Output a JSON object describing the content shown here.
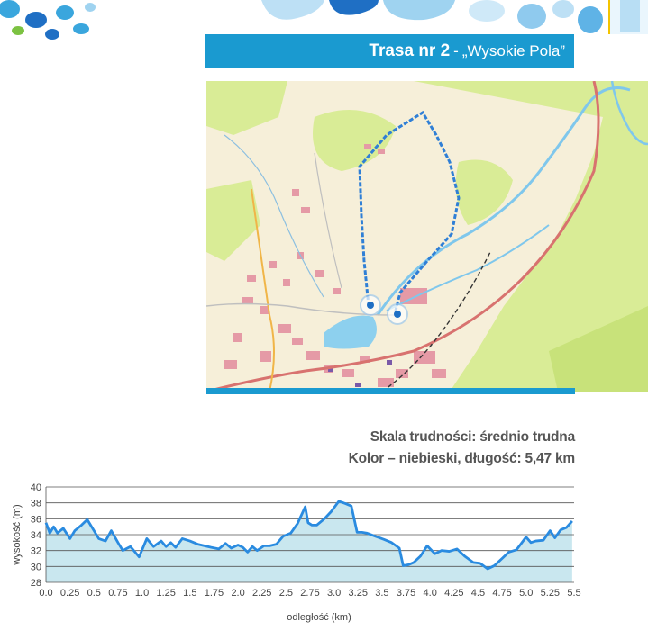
{
  "header": {
    "route_number": "Trasa nr 2",
    "separator": "-",
    "route_name": "„Wysokie Pola”",
    "colors": {
      "bar": "#1a9ad0",
      "text": "#ffffff"
    }
  },
  "map": {
    "icon": "map-image",
    "route_color": "#2f7fd6",
    "start_marker_color": "#1f6fc4"
  },
  "info": {
    "difficulty": "Skala trudności: średnio trudna",
    "color_length": "Kolor – niebieski, długość: 5,47 km"
  },
  "chart_data": {
    "type": "area",
    "xlabel": "odległość (km)",
    "ylabel": "wysokość (m)",
    "xlim": [
      0,
      5.5
    ],
    "ylim": [
      28,
      40
    ],
    "xticks": [
      "0.0",
      "0.25",
      "0.5",
      "0.75",
      "1.0",
      "1.25",
      "1.5",
      "1.75",
      "2.0",
      "2.25",
      "2.5",
      "2.75",
      "3.0",
      "3.25",
      "3.5",
      "3.75",
      "4.0",
      "4.25",
      "4.5",
      "4.75",
      "5.0",
      "5.25",
      "5.5"
    ],
    "yticks": [
      "40",
      "38",
      "36",
      "34",
      "32",
      "30",
      "28"
    ],
    "grid": true,
    "line_color": "#2a8be0",
    "fill_color": "#c9e7ef",
    "x": [
      0,
      0.04,
      0.08,
      0.12,
      0.18,
      0.25,
      0.3,
      0.37,
      0.43,
      0.5,
      0.55,
      0.62,
      0.68,
      0.75,
      0.8,
      0.88,
      0.97,
      1.05,
      1.12,
      1.2,
      1.25,
      1.3,
      1.35,
      1.42,
      1.5,
      1.58,
      1.65,
      1.72,
      1.8,
      1.87,
      1.93,
      2.0,
      2.05,
      2.1,
      2.15,
      2.2,
      2.27,
      2.33,
      2.4,
      2.47,
      2.55,
      2.62,
      2.7,
      2.73,
      2.77,
      2.82,
      2.9,
      2.97,
      3.05,
      3.12,
      3.18,
      3.24,
      3.29,
      3.34,
      3.43,
      3.52,
      3.6,
      3.68,
      3.72,
      3.77,
      3.83,
      3.9,
      3.97,
      4.05,
      4.12,
      4.2,
      4.28,
      4.36,
      4.45,
      4.52,
      4.6,
      4.67,
      4.75,
      4.82,
      4.9,
      5.0,
      5.05,
      5.1,
      5.18,
      5.25,
      5.3,
      5.36,
      5.42,
      5.48
    ],
    "y": [
      35.5,
      34.2,
      35,
      34.2,
      34.8,
      33.5,
      34.5,
      35.2,
      35.9,
      34.5,
      33.5,
      33.2,
      34.5,
      33,
      32,
      32.5,
      31.2,
      33.5,
      32.5,
      33.2,
      32.5,
      33,
      32.4,
      33.5,
      33.2,
      32.8,
      32.6,
      32.4,
      32.2,
      32.9,
      32.3,
      32.7,
      32.4,
      31.8,
      32.5,
      32,
      32.6,
      32.6,
      32.8,
      33.8,
      34.2,
      35.4,
      37.5,
      35.5,
      35.2,
      35.2,
      36,
      36.9,
      38.2,
      37.9,
      37.6,
      34.3,
      34.3,
      34.2,
      33.8,
      33.4,
      33,
      32.3,
      30.1,
      30.2,
      30.5,
      31.3,
      32.6,
      31.6,
      32,
      31.9,
      32.2,
      31.3,
      30.5,
      30.4,
      29.7,
      30.1,
      31,
      31.8,
      32.1,
      33.7,
      33,
      33.2,
      33.3,
      34.5,
      33.6,
      34.6,
      34.9,
      35.7
    ]
  }
}
